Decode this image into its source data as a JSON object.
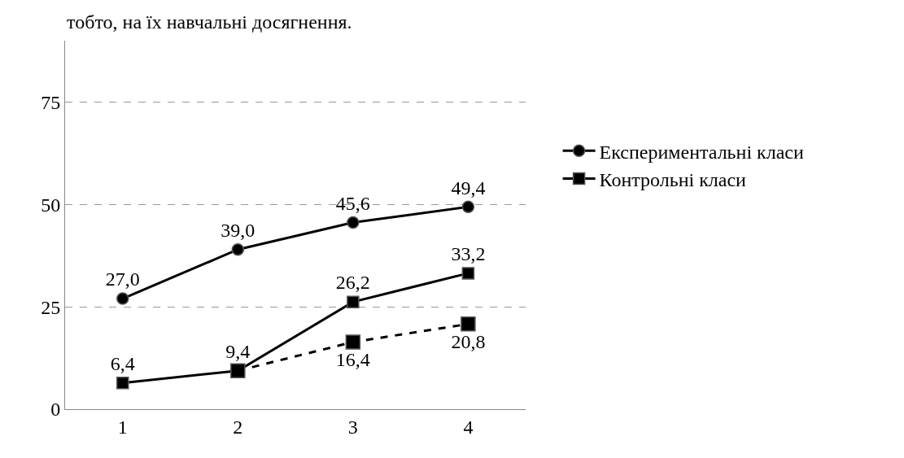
{
  "chart_data": {
    "type": "line",
    "categories": [
      "1",
      "2",
      "3",
      "4"
    ],
    "series": [
      {
        "name": "Експериментальні класи",
        "color": "#000000",
        "marker": "circle",
        "line_style": "solid",
        "values": [
          27.0,
          39.0,
          45.6,
          49.4
        ],
        "value_labels": [
          "27,0",
          "39,0",
          "45,6",
          "49,4"
        ]
      },
      {
        "name": "Контрольні класи",
        "color": "#000000",
        "marker": "square",
        "line_style": "solid",
        "values": [
          6.4,
          9.4,
          26.2,
          33.2
        ],
        "value_labels": [
          "6,4",
          "9,4",
          "26,2",
          "33,2"
        ]
      },
      {
        "color": "#000000",
        "marker": "square",
        "line_style": "dashed",
        "values": [
          null,
          9.4,
          16.4,
          20.8
        ],
        "value_labels": [
          null,
          null,
          "16,4",
          "20,8"
        ]
      }
    ],
    "ylim": [
      0,
      90
    ],
    "yticks": [
      0,
      25,
      50,
      75
    ],
    "grid": "y",
    "legend": "right",
    "annotations": [
      "тобто, на їх навчальні досягнення."
    ]
  }
}
